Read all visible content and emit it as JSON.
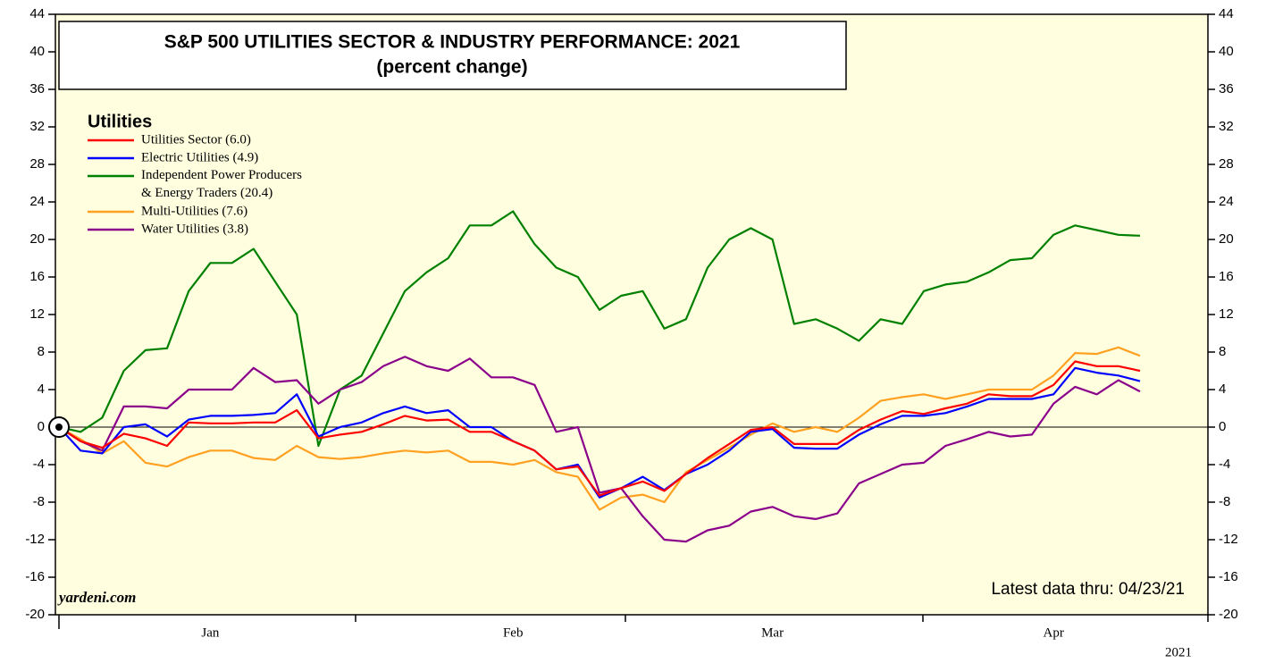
{
  "chart_data": {
    "type": "line",
    "title": "S&P 500 UTILITIES SECTOR & INDUSTRY PERFORMANCE: 2021",
    "subtitle": "(percent change)",
    "legend_title": "Utilities",
    "xlabel": "2021",
    "annotations": [
      "yardeni.com",
      "Latest data thru: 04/23/21"
    ],
    "categories": [
      null,
      null,
      null,
      null,
      null,
      null,
      null,
      "Jan",
      null,
      null,
      null,
      null,
      null,
      null,
      null,
      null,
      null,
      null,
      null,
      null,
      null,
      "Feb",
      null,
      null,
      null,
      null,
      null,
      null,
      null,
      null,
      null,
      null,
      null,
      "Mar",
      null,
      null,
      null,
      null,
      null,
      null,
      null,
      null,
      null,
      null,
      null,
      null,
      "Apr",
      null,
      null,
      null,
      null
    ],
    "ylim": [
      -20,
      44
    ],
    "yticks": [
      -20,
      -16,
      -12,
      -8,
      -4,
      0,
      4,
      8,
      12,
      16,
      20,
      24,
      28,
      32,
      36,
      40,
      44
    ],
    "background": "#ffffe0",
    "series": [
      {
        "name": "Utilities Sector (6.0)",
        "color": "#ff0000",
        "values": [
          0,
          -1.5,
          -2.2,
          -0.7,
          -1.2,
          -2,
          0.5,
          0.4,
          0.4,
          0.5,
          0.5,
          1.8,
          -1.2,
          -0.8,
          -0.5,
          0.3,
          1.2,
          0.7,
          0.8,
          -0.5,
          -0.5,
          -1.5,
          -2.5,
          -4.5,
          -4.2,
          -7.3,
          -6.5,
          -5.8,
          -6.8,
          -5,
          -3.3,
          -1.8,
          -0.3,
          0,
          -1.8,
          -1.8,
          -1.8,
          -0.3,
          0.8,
          1.7,
          1.4,
          2,
          2.5,
          3.5,
          3.3,
          3.3,
          4.5,
          7,
          6.5,
          6.5,
          6.0
        ]
      },
      {
        "name": "Electric Utilities (4.9)",
        "color": "#0000ff",
        "values": [
          0,
          -2.5,
          -2.8,
          0,
          0.3,
          -1,
          0.8,
          1.2,
          1.2,
          1.3,
          1.5,
          3.5,
          -1,
          0,
          0.5,
          1.5,
          2.2,
          1.5,
          1.8,
          0,
          0,
          -1.5,
          -2.5,
          -4.5,
          -4.0,
          -7.5,
          -6.5,
          -5.3,
          -6.7,
          -5,
          -4,
          -2.5,
          -0.5,
          -0.2,
          -2.2,
          -2.3,
          -2.3,
          -0.8,
          0.3,
          1.2,
          1.2,
          1.5,
          2.2,
          3,
          3,
          3,
          3.5,
          6.3,
          5.8,
          5.5,
          4.9
        ]
      },
      {
        "name": "Independent Power Producers & Energy Traders (20.4)",
        "color": "#008000",
        "values": [
          0,
          -0.5,
          1,
          6,
          8.2,
          8.4,
          14.5,
          17.5,
          17.5,
          19,
          15.5,
          12,
          -2,
          4,
          5.5,
          10,
          14.5,
          16.5,
          18,
          21.5,
          21.5,
          23,
          19.5,
          17,
          16,
          12.5,
          14,
          14.5,
          10.5,
          11.5,
          17,
          20,
          21.2,
          20,
          11,
          11.5,
          10.5,
          9.2,
          11.5,
          11,
          14.5,
          15.2,
          15.5,
          16.5,
          17.8,
          18,
          20.5,
          21.5,
          21,
          20.5,
          20.4
        ]
      },
      {
        "name": "Multi-Utilities (7.6)",
        "color": "#ffa020",
        "values": [
          0,
          -1.3,
          -2.8,
          -1.5,
          -3.8,
          -4.2,
          -3.2,
          -2.5,
          -2.5,
          -3.3,
          -3.5,
          -2,
          -3.2,
          -3.4,
          -3.2,
          -2.8,
          -2.5,
          -2.7,
          -2.5,
          -3.7,
          -3.7,
          -4,
          -3.5,
          -4.8,
          -5.3,
          -8.8,
          -7.5,
          -7.2,
          -8,
          -4.8,
          -3.5,
          -2.2,
          -0.8,
          0.4,
          -0.5,
          0,
          -0.5,
          1,
          2.8,
          3.2,
          3.5,
          3,
          3.5,
          4,
          4,
          4,
          5.5,
          7.9,
          7.8,
          8.5,
          7.6
        ]
      },
      {
        "name": "Water Utilities (3.8)",
        "color": "#8b008b",
        "values": [
          0,
          -1.5,
          -2.5,
          2.2,
          2.2,
          2,
          4,
          4,
          4,
          6.3,
          4.8,
          5,
          2.5,
          4,
          4.8,
          6.5,
          7.5,
          6.5,
          6,
          7.3,
          5.3,
          5.3,
          4.5,
          -0.5,
          0,
          -7,
          -6.5,
          -9.5,
          -12,
          -12.2,
          -11,
          -10.5,
          -9,
          -8.5,
          -9.5,
          -9.8,
          -9.2,
          -6,
          -5,
          -4,
          -3.8,
          -2,
          -1.3,
          -0.5,
          -1,
          -0.8,
          2.5,
          4.3,
          3.5,
          5,
          3.8
        ]
      }
    ]
  }
}
